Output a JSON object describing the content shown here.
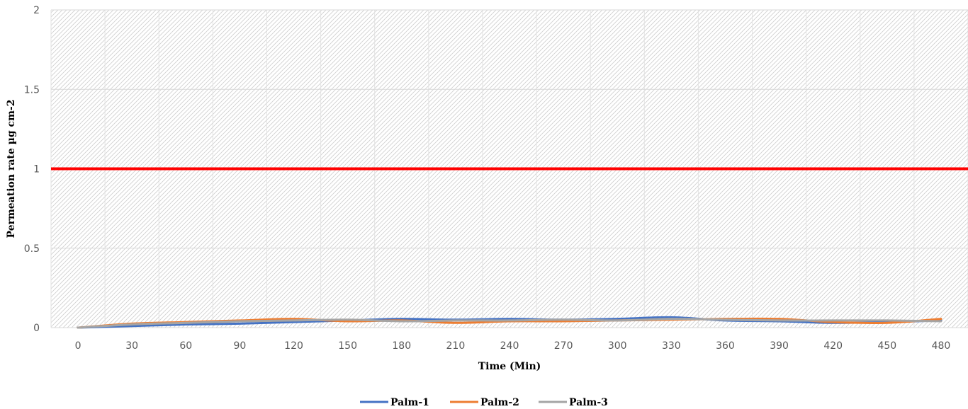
{
  "chart_data": {
    "type": "line",
    "title": "",
    "xlabel": "Time (Min)",
    "ylabel": "Permeation rate µg cm-2",
    "x": [
      0,
      30,
      60,
      90,
      120,
      150,
      180,
      210,
      240,
      270,
      300,
      330,
      360,
      390,
      420,
      450,
      480
    ],
    "xticks": [
      "0",
      "30",
      "60",
      "90",
      "120",
      "150",
      "180",
      "210",
      "240",
      "270",
      "300",
      "330",
      "360",
      "390",
      "420",
      "450",
      "480"
    ],
    "ylim": [
      0,
      2
    ],
    "yticks": [
      "0",
      "0.5",
      "1",
      "1.5",
      "2"
    ],
    "grid": true,
    "legend": "bottom",
    "threshold": {
      "value": 1,
      "color": "#ff0000"
    },
    "series": [
      {
        "name": "Palm-1",
        "color": "#4472c4",
        "values": [
          0,
          0.01,
          0.02,
          0.025,
          0.035,
          0.045,
          0.055,
          0.05,
          0.055,
          0.05,
          0.055,
          0.065,
          0.045,
          0.04,
          0.03,
          0.035,
          0.045
        ]
      },
      {
        "name": "Palm-2",
        "color": "#ed7d31",
        "values": [
          0,
          0.025,
          0.035,
          0.045,
          0.055,
          0.04,
          0.045,
          0.03,
          0.04,
          0.04,
          0.045,
          0.05,
          0.055,
          0.055,
          0.035,
          0.03,
          0.055
        ]
      },
      {
        "name": "Palm-3",
        "color": "#a5a5a5",
        "values": [
          0,
          0.02,
          0.03,
          0.04,
          0.045,
          0.05,
          0.04,
          0.045,
          0.045,
          0.05,
          0.045,
          0.055,
          0.05,
          0.045,
          0.045,
          0.045,
          0.04
        ]
      }
    ]
  }
}
